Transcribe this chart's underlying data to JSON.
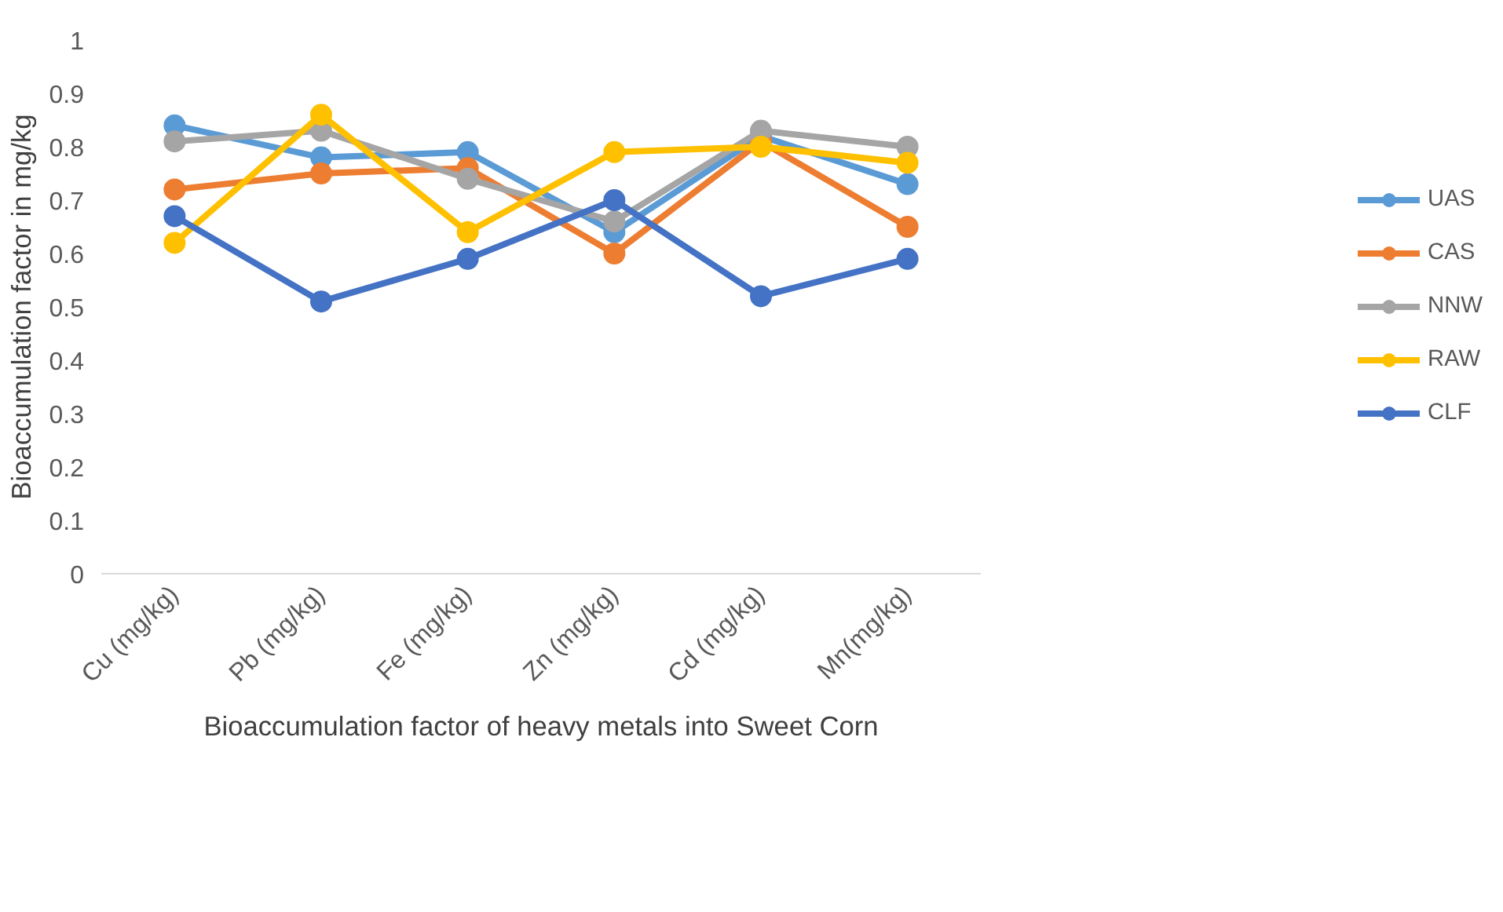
{
  "chart_data": {
    "type": "line",
    "xlabel": "Bioaccumulation factor of heavy metals into Sweet Corn",
    "ylabel": "Bioaccumulation factor in mg/kg",
    "categories": [
      "Cu (mg/kg)",
      "Pb (mg/kg)",
      "Fe (mg/kg)",
      "Zn (mg/kg)",
      "Cd (mg/kg)",
      "Mn(mg/kg)"
    ],
    "series": [
      {
        "name": "UAS",
        "color": "#5b9bd5",
        "values": [
          0.84,
          0.78,
          0.79,
          0.64,
          0.82,
          0.73
        ]
      },
      {
        "name": "CAS",
        "color": "#ed7d31",
        "values": [
          0.72,
          0.75,
          0.76,
          0.6,
          0.81,
          0.65
        ]
      },
      {
        "name": "NNW",
        "color": "#a5a5a5",
        "values": [
          0.81,
          0.83,
          0.74,
          0.66,
          0.83,
          0.8
        ]
      },
      {
        "name": "RAW",
        "color": "#ffc000",
        "values": [
          0.62,
          0.86,
          0.64,
          0.79,
          0.8,
          0.77
        ]
      },
      {
        "name": "CLF",
        "color": "#4472c4",
        "values": [
          0.67,
          0.51,
          0.59,
          0.7,
          0.52,
          0.59
        ]
      }
    ],
    "ylim": [
      0,
      1
    ],
    "yticks": [
      0,
      0.1,
      0.2,
      0.3,
      0.4,
      0.5,
      0.6,
      0.7,
      0.8,
      0.9,
      1
    ],
    "grid": false,
    "legend": "right",
    "marker": "circle",
    "line_style": "solid"
  }
}
